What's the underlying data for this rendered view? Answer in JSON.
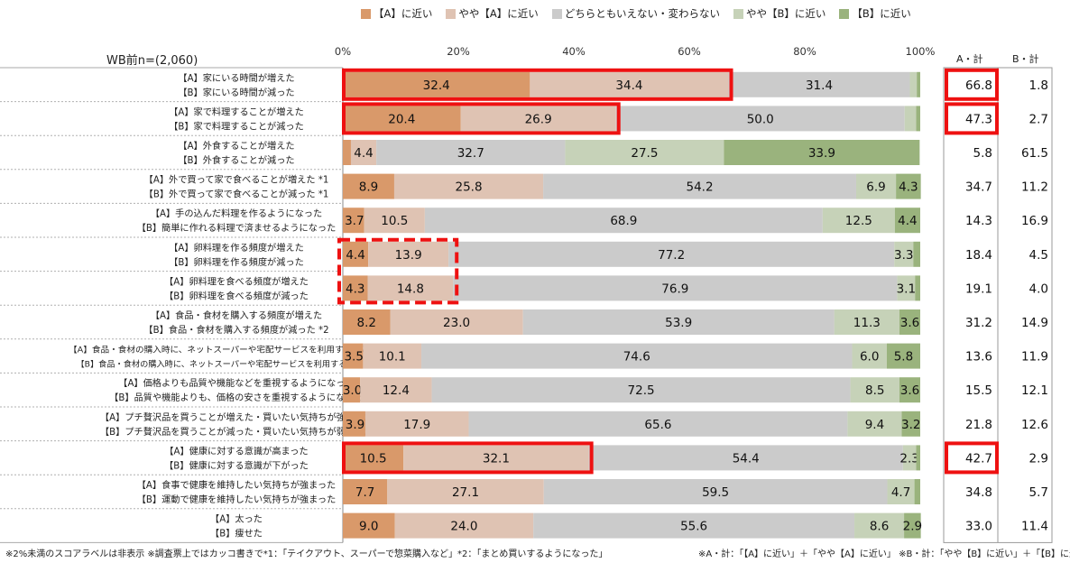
{
  "chart_data": {
    "type": "bar",
    "orientation": "horizontal",
    "stacked": true,
    "sample_label": "WB前n=(2,060)",
    "xlim": [
      0,
      100
    ],
    "x_ticks": [
      "0%",
      "20%",
      "40%",
      "60%",
      "80%",
      "100%"
    ],
    "legend_position": "top",
    "series": [
      {
        "name": "【A】に近い",
        "color": "#d9996a"
      },
      {
        "name": "やや【A】に近い",
        "color": "#dfc3b3"
      },
      {
        "name": "どちらともいえない・変わらない",
        "color": "#cbcbcb"
      },
      {
        "name": "やや【B】に近い",
        "color": "#c6d2b8"
      },
      {
        "name": "【B】に近い",
        "color": "#9ab37d"
      }
    ],
    "totals_headers": [
      "A・計",
      "B・計"
    ],
    "rows": [
      {
        "labelA": "【A】家にいる時間が増えた",
        "labelB": "【B】家にいる時間が減った",
        "values": [
          32.4,
          34.4,
          31.4,
          1.2,
          0.6
        ],
        "display": [
          "32.4",
          "34.4",
          "31.4",
          "",
          ""
        ],
        "a_total": "66.8",
        "b_total": "1.8"
      },
      {
        "labelA": "【A】家で料理することが増えた",
        "labelB": "【B】家で料理することが減った",
        "values": [
          20.4,
          26.9,
          50.0,
          2.0,
          0.7
        ],
        "display": [
          "20.4",
          "26.9",
          "50.0",
          "",
          ""
        ],
        "a_total": "47.3",
        "b_total": "2.7"
      },
      {
        "labelA": "【A】外食することが増えた",
        "labelB": "【B】外食することが減った",
        "values": [
          1.4,
          4.4,
          32.7,
          27.5,
          33.9
        ],
        "display": [
          "",
          "4.4",
          "32.7",
          "27.5",
          "33.9"
        ],
        "a_total": "5.8",
        "b_total": "61.5"
      },
      {
        "labelA": "【A】外で買って家で食べることが増えた *1",
        "labelB": "【B】外で買って家で食べることが減った *1",
        "values": [
          8.9,
          25.8,
          54.2,
          6.9,
          4.3
        ],
        "display": [
          "8.9",
          "25.8",
          "54.2",
          "6.9",
          "4.3"
        ],
        "a_total": "34.7",
        "b_total": "11.2"
      },
      {
        "labelA": "【A】手の込んだ料理を作るようになった",
        "labelB": "【B】簡単に作れる料理で済ませるようになった",
        "values": [
          3.7,
          10.5,
          68.9,
          12.5,
          4.4
        ],
        "display": [
          "3.7",
          "10.5",
          "68.9",
          "12.5",
          "4.4"
        ],
        "a_total": "14.3",
        "b_total": "16.9"
      },
      {
        "labelA": "【A】卵料理を作る頻度が増えた",
        "labelB": "【B】卵料理を作る頻度が減った",
        "values": [
          4.4,
          13.9,
          77.2,
          3.3,
          1.2
        ],
        "display": [
          "4.4",
          "13.9",
          "77.2",
          "3.3",
          ""
        ],
        "a_total": "18.4",
        "b_total": "4.5"
      },
      {
        "labelA": "【A】卵料理を食べる頻度が増えた",
        "labelB": "【B】卵料理を食べる頻度が減った",
        "values": [
          4.3,
          14.8,
          76.9,
          3.1,
          0.9
        ],
        "display": [
          "4.3",
          "14.8",
          "76.9",
          "3.1",
          ""
        ],
        "a_total": "19.1",
        "b_total": "4.0"
      },
      {
        "labelA": "【A】食品・食材を購入する頻度が増えた",
        "labelB": "【B】食品・食材を購入する頻度が減った *2",
        "values": [
          8.2,
          23.0,
          53.9,
          11.3,
          3.6
        ],
        "display": [
          "8.2",
          "23.0",
          "53.9",
          "11.3",
          "3.6"
        ],
        "a_total": "31.2",
        "b_total": "14.9"
      },
      {
        "labelA": "【A】食品・食材の購入時に、ネットスーパーや宅配サービスを利用することが増えた",
        "labelB": "【B】食品・食材の購入時に、ネットスーパーや宅配サービスを利用することが減った",
        "values": [
          3.5,
          10.1,
          74.6,
          6.0,
          5.8
        ],
        "display": [
          "3.5",
          "10.1",
          "74.6",
          "6.0",
          "5.8"
        ],
        "a_total": "13.6",
        "b_total": "11.9"
      },
      {
        "labelA": "【A】価格よりも品質や機能などを重視するようになった",
        "labelB": "【B】品質や機能よりも、価格の安さを重視するようになった",
        "values": [
          3.0,
          12.4,
          72.5,
          8.5,
          3.6
        ],
        "display": [
          "3.0",
          "12.4",
          "72.5",
          "8.5",
          "3.6"
        ],
        "a_total": "15.5",
        "b_total": "12.1"
      },
      {
        "labelA": "【A】プチ贅沢品を買うことが増えた・買いたい気持ちが強まった",
        "labelB": "【B】プチ贅沢品を買うことが減った・買いたい気持ちが弱まった",
        "values": [
          3.9,
          17.9,
          65.6,
          9.4,
          3.2
        ],
        "display": [
          "3.9",
          "17.9",
          "65.6",
          "9.4",
          "3.2"
        ],
        "a_total": "21.8",
        "b_total": "12.6"
      },
      {
        "labelA": "【A】健康に対する意識が高まった",
        "labelB": "【B】健康に対する意識が下がった",
        "values": [
          10.5,
          32.1,
          54.4,
          2.3,
          0.7
        ],
        "display": [
          "10.5",
          "32.1",
          "54.4",
          "2.3",
          ""
        ],
        "a_total": "42.7",
        "b_total": "2.9"
      },
      {
        "labelA": "【A】食事で健康を維持したい気持ちが強まった",
        "labelB": "【B】運動で健康を維持したい気持ちが強まった",
        "values": [
          7.7,
          27.1,
          59.5,
          4.7,
          1.0
        ],
        "display": [
          "7.7",
          "27.1",
          "59.5",
          "4.7",
          ""
        ],
        "a_total": "34.8",
        "b_total": "5.7"
      },
      {
        "labelA": "【A】太った",
        "labelB": "【B】痩せた",
        "values": [
          9.0,
          24.0,
          55.6,
          8.6,
          2.9
        ],
        "display": [
          "9.0",
          "24.0",
          "55.6",
          "8.6",
          "2.9"
        ],
        "a_total": "33.0",
        "b_total": "11.4"
      }
    ],
    "highlights": [
      {
        "type": "solid",
        "row": 0,
        "segments": [
          0,
          1
        ],
        "total": "a"
      },
      {
        "type": "solid",
        "row": 1,
        "segments": [
          0,
          1
        ],
        "total": "a"
      },
      {
        "type": "dashed",
        "rows": [
          5,
          6
        ],
        "segments": [
          0,
          1
        ]
      },
      {
        "type": "solid",
        "row": 11,
        "segments": [
          0,
          1
        ],
        "total": "a"
      }
    ],
    "highlight_color": "#ee1111"
  },
  "notes": {
    "left": "※2%未満のスコアラベルは非表示 ※調査票上ではカッコ書きで*1：「テイクアウト、スーパーで惣菜購入など」*2：「まとめ買いするようになった」",
    "right": "※A・計：「【A】に近い」＋「やや【A】に近い」 ※B・計：「やや【B】に近い」＋「【B】に近い」"
  }
}
